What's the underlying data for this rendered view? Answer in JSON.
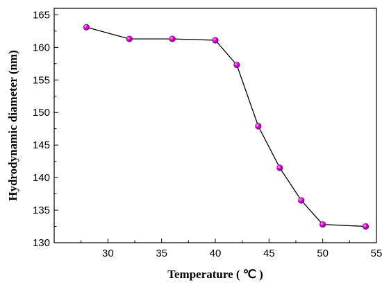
{
  "chart_data": {
    "type": "line",
    "title": "",
    "xlabel": "Temperature ( ℃ )",
    "ylabel": "Hydrodynamic diameter (nm)",
    "xlim": [
      25,
      55
    ],
    "ylim": [
      130,
      166
    ],
    "xticks": [
      30,
      35,
      40,
      45,
      50,
      55
    ],
    "yticks": [
      130,
      135,
      140,
      145,
      150,
      155,
      160,
      165
    ],
    "grid": false,
    "legend": "none",
    "series": [
      {
        "x": [
          28,
          32,
          36,
          40,
          42,
          44,
          46,
          48,
          50,
          54
        ],
        "y": [
          163.1,
          161.3,
          161.3,
          161.1,
          157.3,
          147.9,
          141.5,
          136.5,
          132.8,
          132.5
        ],
        "line_color": "#000000",
        "marker_color": "#e600e6"
      }
    ]
  }
}
